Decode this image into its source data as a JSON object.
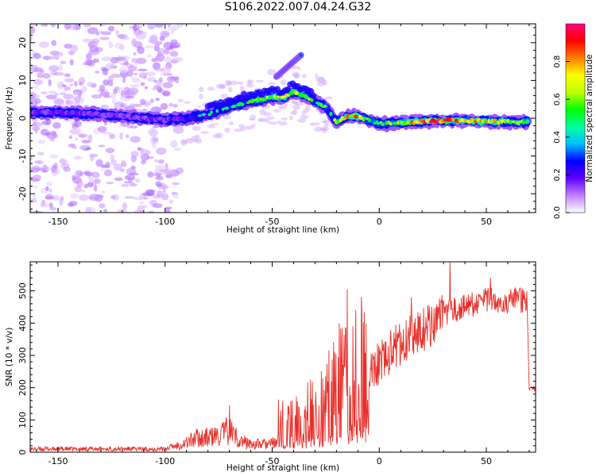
{
  "title": "S106.2022.007.04.24.G32",
  "chart_data": [
    {
      "type": "heatmap",
      "xlabel": "Height of straight line (km)",
      "ylabel": "Frequency (Hz)",
      "xlim": [
        -163,
        73
      ],
      "ylim": [
        -25,
        25
      ],
      "x_ticks": [
        -150,
        -100,
        -50,
        0,
        50
      ],
      "y_ticks": [
        20,
        10,
        0,
        -10,
        -20
      ],
      "colorbar": {
        "label": "Normalized spectral amplitude",
        "range": [
          0,
          1
        ],
        "ticks": [
          0.0,
          0.2,
          0.4,
          0.6,
          0.8
        ],
        "colors": [
          "#ffffff",
          "#c080ff",
          "#6000ff",
          "#0000ff",
          "#00c0ff",
          "#00ffa0",
          "#00ff00",
          "#c0ff00",
          "#ffff00",
          "#ff8000",
          "#ff0000",
          "#ff0080"
        ]
      },
      "ridge": {
        "x": [
          -163,
          -150,
          -130,
          -110,
          -100,
          -90,
          -80,
          -70,
          -60,
          -50,
          -45,
          -40,
          -35,
          -30,
          -25,
          -20,
          -15,
          -10,
          -5,
          0,
          10,
          20,
          30,
          40,
          50,
          60,
          70
        ],
        "y": [
          1.5,
          1.5,
          1,
          0,
          -0.5,
          0,
          1,
          3,
          4.5,
          5.5,
          5.5,
          7,
          6,
          4.5,
          3,
          -1,
          0.5,
          0.5,
          -0.5,
          -1.5,
          -1.2,
          -0.8,
          -0.6,
          -0.6,
          -0.8,
          -1,
          -1
        ],
        "amplitude": [
          0.3,
          0.28,
          0.27,
          0.28,
          0.3,
          0.38,
          0.42,
          0.45,
          0.52,
          0.62,
          0.65,
          0.62,
          0.6,
          0.55,
          0.5,
          0.55,
          0.7,
          0.85,
          0.5,
          0.5,
          0.6,
          0.9,
          0.85,
          0.75,
          0.75,
          0.65,
          0.55
        ]
      },
      "side_branch": {
        "x": [
          -48,
          -42,
          -36
        ],
        "y": [
          11,
          14,
          17
        ],
        "amplitude": [
          0.3,
          0.28,
          0.32
        ]
      },
      "noise_region": [
        -163,
        -93
      ]
    },
    {
      "type": "line",
      "xlabel": "Height of straight line (km)",
      "ylabel": "SNR (10 * v/v)",
      "xlim": [
        -163,
        73
      ],
      "ylim": [
        0,
        590
      ],
      "x_ticks": [
        -150,
        -100,
        -50,
        0,
        50
      ],
      "y_ticks": [
        0,
        100,
        200,
        300,
        400,
        500
      ],
      "line_color": "#e8302a",
      "series": [
        {
          "x": [
            -163,
            -140,
            -120,
            -100,
            -95,
            -90,
            -85,
            -80,
            -75,
            -70,
            -65,
            -60,
            -55,
            -50,
            -47,
            -45,
            -40,
            -35,
            -30,
            -25,
            -20,
            -15,
            -10,
            -5,
            0,
            5,
            10,
            15,
            20,
            25,
            30,
            35,
            40,
            45,
            50,
            55,
            60,
            65,
            69,
            70,
            73
          ],
          "y": [
            10,
            10,
            10,
            10,
            20,
            30,
            45,
            45,
            50,
            70,
            35,
            25,
            25,
            25,
            90,
            70,
            90,
            110,
            130,
            170,
            210,
            240,
            260,
            260,
            280,
            310,
            340,
            360,
            380,
            400,
            420,
            440,
            450,
            460,
            470,
            470,
            470,
            470,
            470,
            190,
            200
          ]
        }
      ],
      "spikes": [
        {
          "x": -70,
          "y": 145
        },
        {
          "x": -45,
          "y": 160
        },
        {
          "x": -15,
          "y": 505
        },
        {
          "x": -11,
          "y": 440
        },
        {
          "x": 15,
          "y": 480
        },
        {
          "x": 33,
          "y": 595
        },
        {
          "x": 52,
          "y": 540
        }
      ]
    }
  ]
}
